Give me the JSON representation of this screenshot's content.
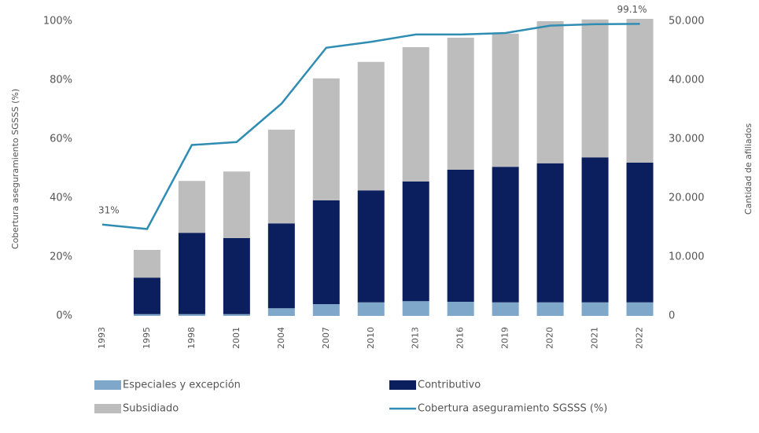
{
  "chart_data": {
    "type": "bar",
    "stacked": true,
    "categories": [
      "1993",
      "1995",
      "1998",
      "2001",
      "2004",
      "2007",
      "2010",
      "2013",
      "2016",
      "2019",
      "2020",
      "2021",
      "2022"
    ],
    "series": [
      {
        "name": "Especiales y excepción",
        "color": "#7fa7c9",
        "axis": "y2",
        "values": [
          null,
          300,
          300,
          300,
          1300,
          2000,
          2300,
          2500,
          2400,
          2300,
          2300,
          2300,
          2300
        ]
      },
      {
        "name": "Contributivo",
        "color": "#0b1f5e",
        "axis": "y2",
        "values": [
          null,
          6200,
          13800,
          12900,
          14400,
          17600,
          19000,
          20300,
          22400,
          23000,
          23600,
          24600,
          23700
        ]
      },
      {
        "name": "Subsidiado",
        "color": "#bdbdbd",
        "axis": "y2",
        "values": [
          null,
          4700,
          8800,
          11300,
          15900,
          20700,
          21800,
          22800,
          22400,
          22600,
          24100,
          23400,
          24400
        ]
      },
      {
        "name": "Cobertura aseguramiento SGSSS (%)",
        "color": "#2f8db3",
        "type": "line",
        "axis": "y",
        "values": [
          31,
          29.5,
          58,
          59,
          72,
          91,
          93,
          95.5,
          95.5,
          96,
          98.5,
          99,
          99.1
        ],
        "value_labels": [
          "31%",
          null,
          null,
          null,
          null,
          null,
          null,
          null,
          null,
          null,
          null,
          null,
          "99.1%"
        ]
      }
    ],
    "ylabel": "Cobertura aseguramiento SGSSS (%)",
    "y2label": "Cantidad de afiliados",
    "ylim": [
      0,
      100
    ],
    "yticks": [
      {
        "value": 0,
        "label": "0%"
      },
      {
        "value": 20,
        "label": "20%"
      },
      {
        "value": 40,
        "label": "40%"
      },
      {
        "value": 60,
        "label": "60%"
      },
      {
        "value": 80,
        "label": "80%"
      },
      {
        "value": 100,
        "label": "100%"
      }
    ],
    "y2lim": [
      0,
      50000
    ],
    "y2ticks": [
      0,
      {
        "value": 10000,
        "label": "10.000"
      },
      {
        "value": 20000,
        "label": "20.000"
      },
      {
        "value": 30000,
        "label": "30.000"
      },
      {
        "value": 40000,
        "label": "40.000"
      },
      {
        "value": 50000,
        "label": "50.000"
      }
    ],
    "legend": "bottom"
  }
}
